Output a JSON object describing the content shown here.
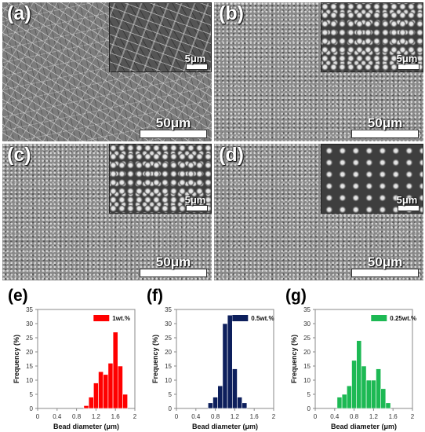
{
  "sem_panels": [
    {
      "label": "(a)",
      "scale_main": "50μm",
      "scale_inset": "5μm"
    },
    {
      "label": "(b)",
      "scale_main": "50μm",
      "scale_inset": "5μm"
    },
    {
      "label": "(c)",
      "scale_main": "50μm",
      "scale_inset": "5μm"
    },
    {
      "label": "(d)",
      "scale_main": "50μm",
      "scale_inset": "5μm"
    }
  ],
  "hist_labels": [
    "(e)",
    "(f)",
    "(g)"
  ],
  "chart_data": [
    {
      "type": "bar",
      "panel": "(e)",
      "xlabel": "Bead diameter (μm)",
      "ylabel": "Frequency (%)",
      "xlim": [
        0,
        2
      ],
      "ylim": [
        0,
        35
      ],
      "xticks": [
        "0",
        "0.4",
        "0.8",
        "1.2",
        "1.6",
        "2"
      ],
      "yticks": [
        "0",
        "5",
        "10",
        "15",
        "20",
        "25",
        "30",
        "35"
      ],
      "legend": "1wt.%",
      "color": "#ff0000",
      "bin_width": 0.1,
      "bin_centers": [
        1.0,
        1.1,
        1.2,
        1.3,
        1.4,
        1.5,
        1.6,
        1.7,
        1.8
      ],
      "values": [
        1,
        4,
        9,
        13,
        12,
        16,
        27,
        15,
        5
      ]
    },
    {
      "type": "bar",
      "panel": "(f)",
      "xlabel": "Bead diameter (μm)",
      "ylabel": "Frequency (%)",
      "xlim": [
        0,
        2
      ],
      "ylim": [
        0,
        35
      ],
      "xticks": [
        "0",
        "0.4",
        "0.8",
        "1.2",
        "1.6",
        "2"
      ],
      "yticks": [
        "0",
        "5",
        "10",
        "15",
        "20",
        "25",
        "30",
        "35"
      ],
      "legend": "0.5wt.%",
      "color": "#0d1f5c",
      "bin_width": 0.1,
      "bin_centers": [
        0.7,
        0.8,
        0.9,
        1.0,
        1.1,
        1.2,
        1.3,
        1.4
      ],
      "values": [
        2,
        4,
        8,
        30,
        33,
        14,
        4,
        2
      ]
    },
    {
      "type": "bar",
      "panel": "(g)",
      "xlabel": "Bead diameter (μm)",
      "ylabel": "Frequency (%)",
      "xlim": [
        0,
        2
      ],
      "ylim": [
        0,
        35
      ],
      "xticks": [
        "0",
        "0.4",
        "0.8",
        "1.2",
        "1.6",
        "2"
      ],
      "yticks": [
        "0",
        "5",
        "10",
        "15",
        "20",
        "25",
        "30",
        "35"
      ],
      "legend": "0.25wt.%",
      "color": "#1db954",
      "bin_width": 0.1,
      "bin_centers": [
        0.5,
        0.6,
        0.7,
        0.8,
        0.9,
        1.0,
        1.1,
        1.2,
        1.3,
        1.4,
        1.5
      ],
      "values": [
        4,
        5,
        8,
        17,
        24,
        15,
        10,
        10,
        14,
        7,
        2
      ]
    }
  ]
}
